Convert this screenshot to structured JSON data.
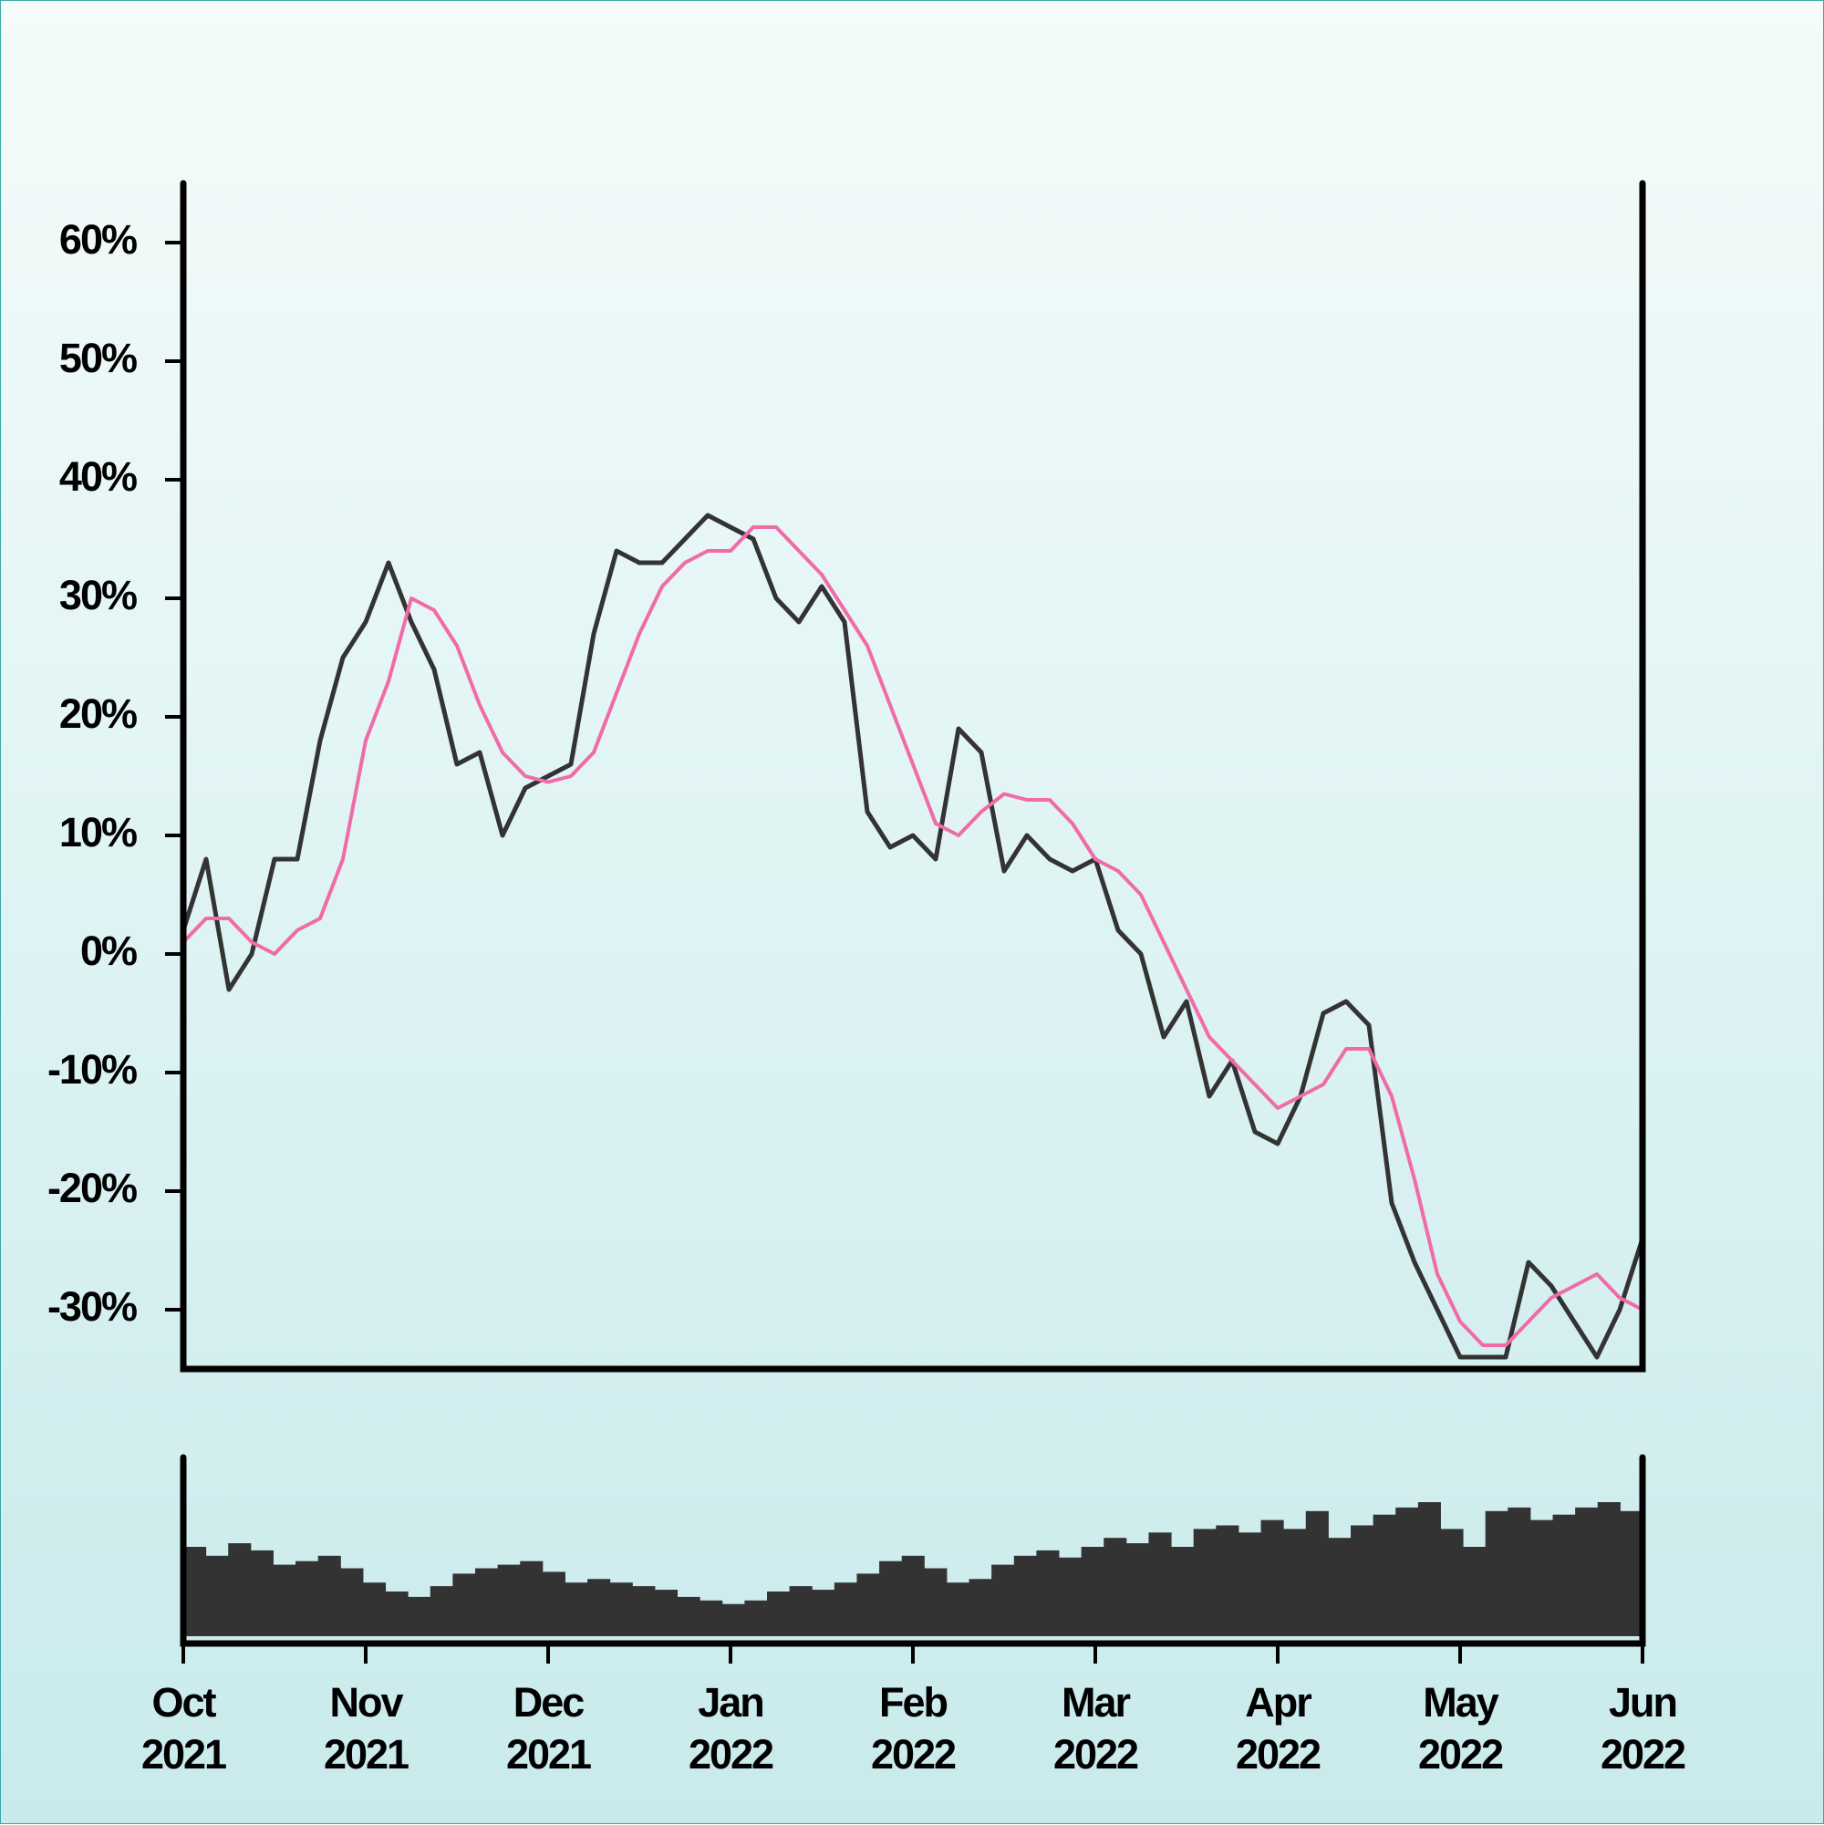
{
  "chart_data": [
    {
      "type": "line",
      "categories": [
        "Oct 2021",
        null,
        null,
        null,
        null,
        null,
        null,
        null,
        "Nov 2021",
        null,
        null,
        null,
        null,
        null,
        null,
        null,
        "Dec 2021",
        null,
        null,
        null,
        null,
        null,
        null,
        null,
        "Jan 2022",
        null,
        null,
        null,
        null,
        null,
        null,
        null,
        "Feb 2022",
        null,
        null,
        null,
        null,
        null,
        null,
        null,
        "Mar 2022",
        null,
        null,
        null,
        null,
        null,
        null,
        null,
        "Apr 2022",
        null,
        null,
        null,
        null,
        null,
        null,
        null,
        "May 2022",
        null,
        null,
        null,
        null,
        null,
        null,
        null,
        "Jun 2022"
      ],
      "series": [
        {
          "color": "#333333",
          "values": [
            2,
            8,
            -3,
            0,
            8,
            8,
            18,
            25,
            28,
            33,
            28,
            24,
            16,
            17,
            10,
            14,
            15,
            16,
            27,
            34,
            33,
            33,
            35,
            37,
            36,
            35,
            30,
            28,
            31,
            28,
            12,
            9,
            10,
            8,
            19,
            17,
            7,
            10,
            8,
            7,
            8,
            2,
            0,
            -7,
            -4,
            -12,
            -9,
            -15,
            -16,
            -12,
            -5,
            -4,
            -6,
            -21,
            -26,
            -30,
            -34,
            -34,
            -34,
            -26,
            -28,
            -31,
            -34,
            -30,
            -24
          ]
        },
        {
          "color": "#f06ba8",
          "values": [
            1,
            3,
            3,
            1,
            0,
            2,
            3,
            8,
            18,
            23,
            30,
            29,
            26,
            21,
            17,
            15,
            14.5,
            15,
            17,
            22,
            27,
            31,
            33,
            34,
            34,
            36,
            36,
            34,
            32,
            29,
            26,
            21,
            16,
            11,
            10,
            12,
            13.5,
            13,
            13,
            11,
            8,
            7,
            5,
            1,
            -3,
            -7,
            -9,
            -11,
            -13,
            -12,
            -11,
            -8,
            -8,
            -12,
            -19,
            -27,
            -31,
            -33,
            -33,
            -31,
            -29,
            -28,
            -27,
            -29,
            -30
          ]
        }
      ],
      "ylim": [
        -35,
        65
      ],
      "yticks": [
        {
          "value": -30,
          "label": "-30%"
        },
        {
          "value": -20,
          "label": "-20%"
        },
        {
          "value": -10,
          "label": "-10%"
        },
        {
          "value": 0,
          "label": "0%"
        },
        {
          "value": 10,
          "label": "10%"
        },
        {
          "value": 20,
          "label": "20%"
        },
        {
          "value": 30,
          "label": "30%"
        },
        {
          "value": 40,
          "label": "40%"
        },
        {
          "value": 50,
          "label": "50%"
        },
        {
          "value": 60,
          "label": "60%"
        }
      ]
    },
    {
      "type": "bar",
      "color": "#333333",
      "ylim": [
        0,
        100
      ],
      "values": [
        50,
        45,
        52,
        48,
        40,
        42,
        45,
        38,
        30,
        25,
        22,
        28,
        35,
        38,
        40,
        42,
        36,
        30,
        32,
        30,
        28,
        26,
        22,
        20,
        18,
        20,
        25,
        28,
        26,
        30,
        35,
        42,
        45,
        38,
        30,
        32,
        40,
        45,
        48,
        44,
        50,
        55,
        52,
        58,
        50,
        60,
        62,
        58,
        65,
        60,
        70,
        55,
        62,
        68,
        72,
        75,
        60,
        50,
        70,
        72,
        65,
        68,
        72,
        75,
        70
      ]
    }
  ]
}
